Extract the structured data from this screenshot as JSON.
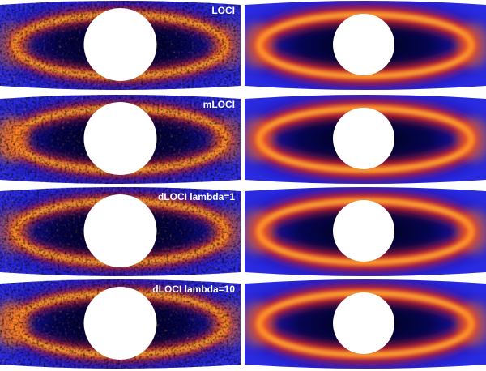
{
  "rows": [
    {
      "label": "LOCI"
    },
    {
      "label": "mLOCI"
    },
    {
      "label": "dLOCI lambda=1"
    },
    {
      "label": "dLOCI lambda=10"
    }
  ]
}
